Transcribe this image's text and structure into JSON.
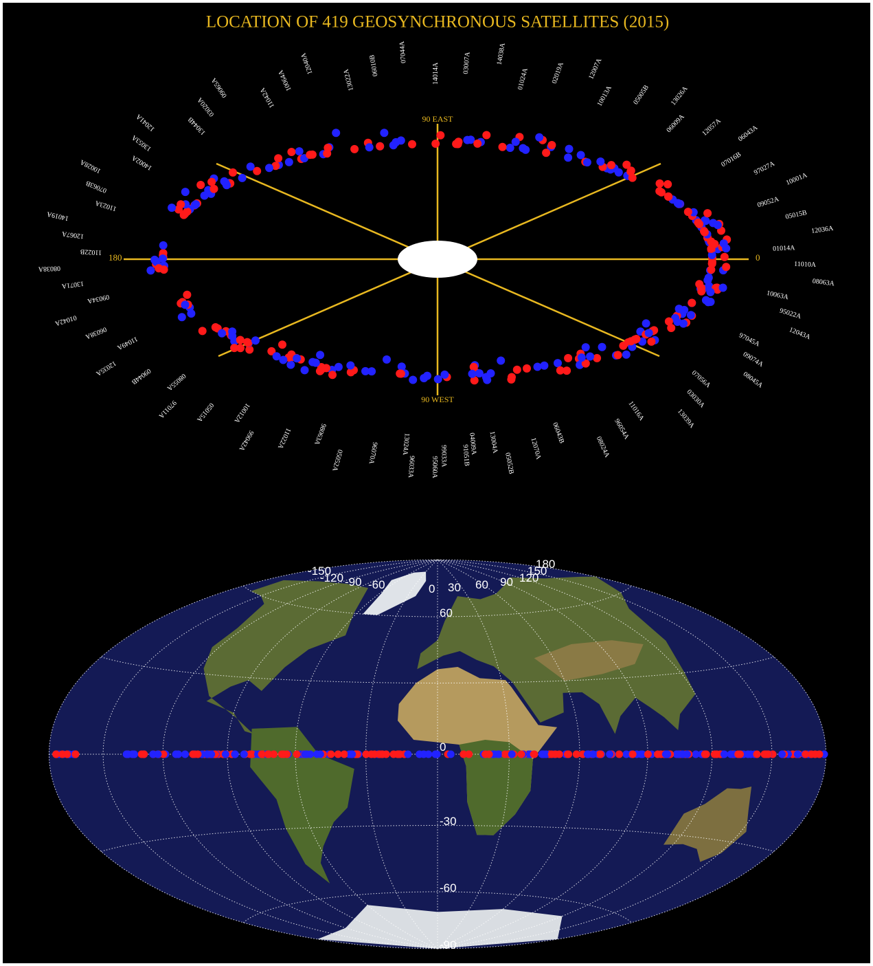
{
  "title": "LOCATION OF 419 GEOSYNCHRONOUS SATELLITES (2015)",
  "ring_labels": {
    "east": "90 EAST",
    "west": "90 WEST",
    "lon_180": "180",
    "lon_0": "0"
  },
  "satellite_ids": [
    "13004A",
    "91051B",
    "95060A",
    "13024A",
    "96070A",
    "05052A",
    "98063A",
    "11022A",
    "99042A",
    "10012A",
    "05015A",
    "97011A",
    "08055A",
    "09044B",
    "12035A",
    "11049A",
    "06038A",
    "01042A",
    "09034A",
    "13071A",
    "08038A",
    "11022B",
    "12067A",
    "14019A",
    "11023A",
    "07063B",
    "10028A",
    "14002A",
    "13053A",
    "12041A",
    "13044B",
    "03020A",
    "09065A",
    "11042A",
    "10064A",
    "12040A",
    "13022A",
    "06010B",
    "07044A",
    "14014A",
    "03007A",
    "14038A",
    "01024A",
    "02019A",
    "12007A",
    "10013A",
    "05005B",
    "13026A",
    "06009A",
    "12057A",
    "06043A",
    "07016B",
    "97027A",
    "10001A",
    "09052A",
    "05015B",
    "12036A",
    "01014A",
    "11010A",
    "08063A",
    "10063A",
    "95022A",
    "12043A",
    "97045A",
    "09074A",
    "08045A",
    "07056A",
    "03030A",
    "13039A",
    "11016A",
    "96054A",
    "08024A",
    "06043B",
    "12070A",
    "05052B",
    "04009A",
    "99033A",
    "96033A"
  ],
  "map": {
    "longitude_labels": [
      "-150",
      "-120",
      "-90",
      "-60",
      "0",
      "30",
      "60",
      "90",
      "120",
      "150",
      "180"
    ],
    "latitude_labels": [
      "60",
      "0",
      "-30",
      "-60",
      "-90"
    ]
  }
}
